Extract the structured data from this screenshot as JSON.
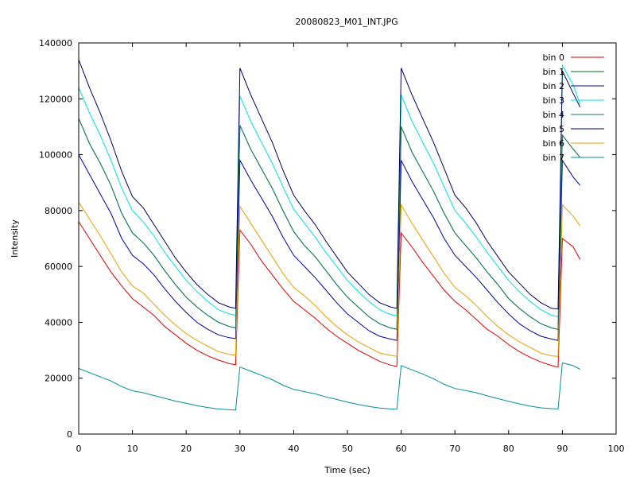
{
  "chart_data": {
    "type": "line",
    "title": "20080823_M01_INT.JPG",
    "xlabel": "Time (sec)",
    "ylabel": "Intensity",
    "xlim": [
      0,
      100
    ],
    "ylim": [
      0,
      140000
    ],
    "xticks": [
      0,
      10,
      20,
      30,
      40,
      50,
      60,
      70,
      80,
      90,
      100
    ],
    "yticks": [
      0,
      20000,
      40000,
      60000,
      80000,
      100000,
      120000,
      140000
    ],
    "grid": false,
    "legend_position": "top-right",
    "x": [
      0,
      2,
      4,
      6,
      8,
      10,
      12,
      14,
      16,
      18,
      20,
      22,
      24,
      26,
      28,
      29.2,
      30,
      32,
      34,
      36,
      38,
      40,
      42,
      44,
      46,
      48,
      50,
      52,
      54,
      56,
      58,
      59.2,
      60,
      62,
      64,
      66,
      68,
      70,
      72,
      74,
      76,
      78,
      80,
      82,
      84,
      86,
      88,
      89.2,
      90,
      92,
      93.3
    ],
    "series": [
      {
        "name": "bin 0",
        "color": "#dd0000",
        "values": [
          76000,
          70000,
          64000,
          58000,
          53000,
          48500,
          45500,
          42500,
          38500,
          35500,
          32500,
          30000,
          28000,
          26500,
          25200,
          24800,
          73000,
          68000,
          62000,
          57000,
          52000,
          47500,
          44500,
          41500,
          38000,
          35000,
          32500,
          30000,
          28000,
          26000,
          24700,
          24200,
          72000,
          67000,
          61500,
          56500,
          51500,
          47500,
          44500,
          41000,
          37500,
          35000,
          32000,
          29500,
          27500,
          25800,
          24500,
          24000,
          70000,
          67000,
          62500
        ]
      },
      {
        "name": "bin 1",
        "color": "#00701a",
        "values": [
          113000,
          104000,
          97000,
          89000,
          79000,
          72000,
          68500,
          64000,
          58500,
          53500,
          49000,
          45500,
          42500,
          40000,
          38500,
          38000,
          110500,
          102000,
          95000,
          88000,
          80000,
          72500,
          67500,
          63500,
          58500,
          53500,
          49000,
          45500,
          42000,
          39500,
          38000,
          37500,
          110000,
          101000,
          94000,
          87000,
          79000,
          72000,
          67500,
          63000,
          58000,
          53500,
          48500,
          45000,
          42000,
          39500,
          38000,
          37500,
          107000,
          102000,
          99000
        ]
      },
      {
        "name": "bin 2",
        "color": "#0000a0",
        "values": [
          100000,
          93000,
          86000,
          79000,
          70000,
          64000,
          61000,
          57000,
          52000,
          47500,
          43500,
          40000,
          37500,
          35500,
          34500,
          34200,
          98000,
          91000,
          84500,
          78000,
          70500,
          64000,
          60000,
          56000,
          51500,
          47000,
          43000,
          40000,
          37000,
          35000,
          34000,
          33500,
          98000,
          90500,
          84000,
          77500,
          70000,
          64000,
          60000,
          56000,
          51500,
          47000,
          43000,
          39500,
          37000,
          35000,
          34000,
          33500,
          98000,
          92000,
          89000
        ]
      },
      {
        "name": "bin 3",
        "color": "#00e0e0",
        "values": [
          124000,
          115000,
          107000,
          98000,
          88000,
          80000,
          76000,
          71000,
          65000,
          60000,
          55000,
          51000,
          47500,
          44500,
          43000,
          42500,
          121000,
          112000,
          104500,
          97000,
          88500,
          80500,
          75500,
          70500,
          65000,
          60000,
          55000,
          51000,
          47500,
          44500,
          42800,
          42300,
          121500,
          112000,
          104500,
          97000,
          88500,
          80000,
          75500,
          70500,
          65000,
          60000,
          55000,
          51000,
          47500,
          44500,
          42500,
          42000,
          132000,
          125000,
          118000
        ]
      },
      {
        "name": "bin 4",
        "color": "#1a7a5a",
        "values": [
          113000,
          104000,
          97000,
          89000,
          79000,
          72000,
          68500,
          64000,
          58500,
          53500,
          49000,
          45500,
          42500,
          40000,
          38500,
          38000,
          110500,
          102000,
          95000,
          88000,
          80000,
          72500,
          67500,
          63500,
          58500,
          53500,
          49000,
          45500,
          42000,
          39500,
          38000,
          37500,
          110000,
          101000,
          94000,
          87000,
          79000,
          72000,
          67500,
          63000,
          58000,
          53500,
          48500,
          45000,
          42000,
          39500,
          38000,
          37500,
          107000,
          102000,
          99000
        ]
      },
      {
        "name": "bin 5",
        "color": "#000060",
        "values": [
          134000,
          124000,
          115000,
          105000,
          94000,
          85000,
          81000,
          75000,
          69000,
          63000,
          58000,
          53500,
          50000,
          47000,
          45500,
          45000,
          131000,
          121500,
          113000,
          104500,
          94500,
          85500,
          80000,
          75000,
          69000,
          63500,
          58000,
          54000,
          50000,
          47000,
          45500,
          45000,
          131000,
          121500,
          113000,
          104500,
          95000,
          85500,
          81000,
          75500,
          69000,
          63500,
          58000,
          54000,
          50000,
          47000,
          45000,
          44800,
          130000,
          122000,
          117000
        ]
      },
      {
        "name": "bin 6",
        "color": "#e8a000",
        "values": [
          83000,
          77000,
          71000,
          64500,
          58000,
          53000,
          50500,
          46500,
          42500,
          39000,
          36000,
          33500,
          31500,
          29500,
          28500,
          28200,
          81500,
          75500,
          69500,
          63500,
          57500,
          52500,
          49500,
          46000,
          42000,
          38500,
          35500,
          33000,
          31000,
          29000,
          28200,
          27800,
          82000,
          75500,
          69500,
          63500,
          57500,
          52500,
          49500,
          46000,
          42000,
          38500,
          35500,
          33000,
          31000,
          29000,
          28000,
          27800,
          82000,
          78000,
          74500
        ]
      },
      {
        "name": "bin 7",
        "color": "#00909a",
        "values": [
          23500,
          22000,
          20500,
          19000,
          17000,
          15500,
          14800,
          13800,
          12800,
          11800,
          11000,
          10200,
          9500,
          9000,
          8700,
          8600,
          24000,
          22500,
          21000,
          19500,
          17500,
          16000,
          15200,
          14400,
          13300,
          12400,
          11400,
          10600,
          9900,
          9300,
          9000,
          8900,
          24500,
          23000,
          21500,
          19800,
          17800,
          16300,
          15600,
          14800,
          13700,
          12700,
          11700,
          10800,
          10000,
          9400,
          9100,
          9000,
          25500,
          24500,
          23200
        ]
      }
    ]
  }
}
